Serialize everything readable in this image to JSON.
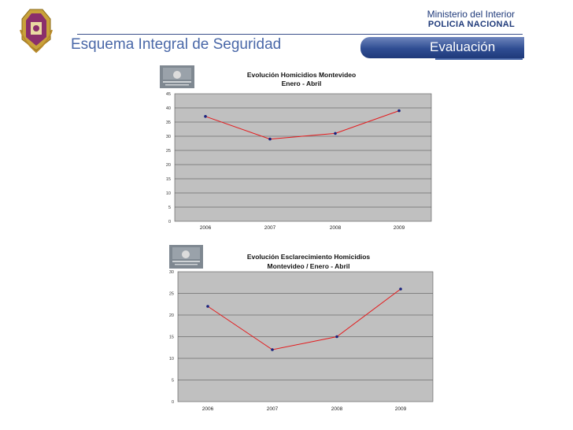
{
  "header": {
    "ministry": "Ministerio del Interior",
    "police": "POLICIA NACIONAL",
    "title": "Esquema Integral de Seguridad",
    "tab_label": "Evaluación"
  },
  "colors": {
    "brand_blue": "#1f3a7a",
    "title_blue": "#4a68a8",
    "plot_bg": "#c0c0c0",
    "line": "#e41a1c",
    "marker": "#1a237e"
  },
  "chart_data": [
    {
      "type": "line",
      "title_lines": [
        "Evolución Homicidios Montevideo",
        "Enero - Abril"
      ],
      "categories": [
        "2006",
        "2007",
        "2008",
        "2009"
      ],
      "series": [
        {
          "values": [
            37,
            29,
            31,
            39
          ]
        }
      ],
      "ylim": [
        0,
        45
      ],
      "yticks": [
        0,
        5,
        10,
        15,
        20,
        25,
        30,
        35,
        40,
        45
      ],
      "grid": true
    },
    {
      "type": "line",
      "title_lines": [
        "Evolución Esclarecimiento Homicidios",
        "Montevideo / Enero - Abril"
      ],
      "categories": [
        "2006",
        "2007",
        "2008",
        "2009"
      ],
      "series": [
        {
          "values": [
            22,
            12,
            15,
            26
          ]
        }
      ],
      "ylim": [
        0,
        30
      ],
      "yticks": [
        0,
        5,
        10,
        15,
        20,
        25,
        30
      ],
      "grid": true
    }
  ]
}
